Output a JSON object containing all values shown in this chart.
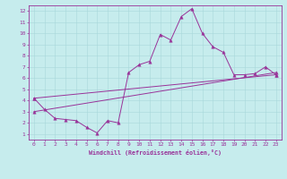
{
  "xlabel": "Windchill (Refroidissement éolien,°C)",
  "background_color": "#c6eced",
  "grid_color": "#a8d8da",
  "line_color": "#993399",
  "xlim": [
    -0.5,
    23.5
  ],
  "ylim": [
    0.5,
    12.5
  ],
  "xticks": [
    0,
    1,
    2,
    3,
    4,
    5,
    6,
    7,
    8,
    9,
    10,
    11,
    12,
    13,
    14,
    15,
    16,
    17,
    18,
    19,
    20,
    21,
    22,
    23
  ],
  "yticks": [
    1,
    2,
    3,
    4,
    5,
    6,
    7,
    8,
    9,
    10,
    11,
    12
  ],
  "line1_x": [
    0,
    1,
    2,
    3,
    4,
    5,
    6,
    7,
    8,
    9,
    10,
    11,
    12,
    13,
    14,
    15,
    16,
    17,
    18,
    19,
    20,
    21,
    22,
    23
  ],
  "line1_y": [
    4.2,
    3.2,
    2.4,
    2.3,
    2.2,
    1.6,
    1.1,
    2.2,
    2.0,
    6.5,
    7.2,
    7.5,
    9.9,
    9.4,
    11.5,
    12.2,
    10.0,
    8.8,
    8.3,
    6.3,
    6.3,
    6.4,
    7.0,
    6.3
  ],
  "line2_x": [
    0,
    23
  ],
  "line2_y": [
    4.2,
    6.3
  ],
  "line3_x": [
    0,
    23
  ],
  "line3_y": [
    3.0,
    6.5
  ]
}
